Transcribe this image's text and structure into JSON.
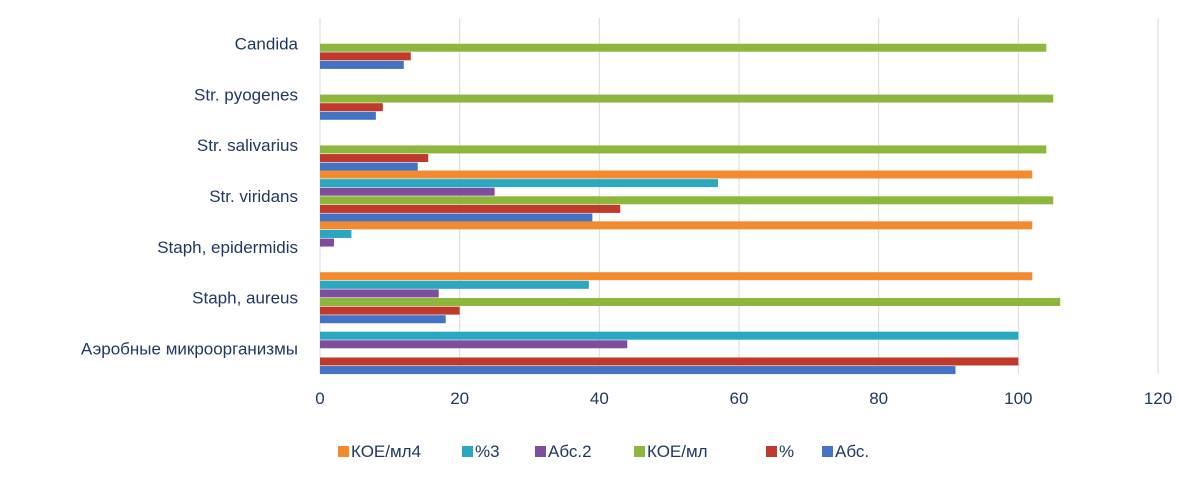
{
  "chart_data": {
    "type": "bar",
    "orientation": "horizontal",
    "title": "",
    "xlabel": "",
    "ylabel": "",
    "categories": [
      "Аэробные микроорганизмы",
      "Staph, aureus",
      "Staph, epidermidis",
      "Str. viridans",
      "Str. salivarius",
      "Str. pyogenes",
      "Candida"
    ],
    "xlim": [
      0,
      120
    ],
    "xticks": [
      0,
      20,
      40,
      60,
      80,
      100,
      120
    ],
    "grid": true,
    "legend_position": "bottom",
    "series": [
      {
        "name": "Абс.",
        "color": "#4472c4",
        "values": [
          91,
          18,
          0,
          39,
          14,
          8,
          12
        ]
      },
      {
        "name": "%",
        "color": "#c0392b",
        "values": [
          100,
          20,
          0,
          43,
          15.5,
          9,
          13
        ]
      },
      {
        "name": "КОЕ/мл",
        "color": "#8db63c",
        "values": [
          0,
          106,
          0,
          105,
          104,
          105,
          104
        ]
      },
      {
        "name": "Абс.2",
        "color": "#7e4d9c",
        "values": [
          44,
          17,
          2,
          25,
          0,
          0,
          0
        ]
      },
      {
        "name": "%3",
        "color": "#29a8c2",
        "values": [
          100,
          38.5,
          4.5,
          57,
          0,
          0,
          0
        ]
      },
      {
        "name": "КОЕ/мл4",
        "color": "#f28a30",
        "values": [
          0,
          102,
          102,
          102,
          0,
          0,
          0
        ]
      }
    ],
    "legend_order": [
      "КОЕ/мл4",
      "%3",
      "Абс.2",
      "КОЕ/мл",
      "%",
      "Абс."
    ]
  }
}
